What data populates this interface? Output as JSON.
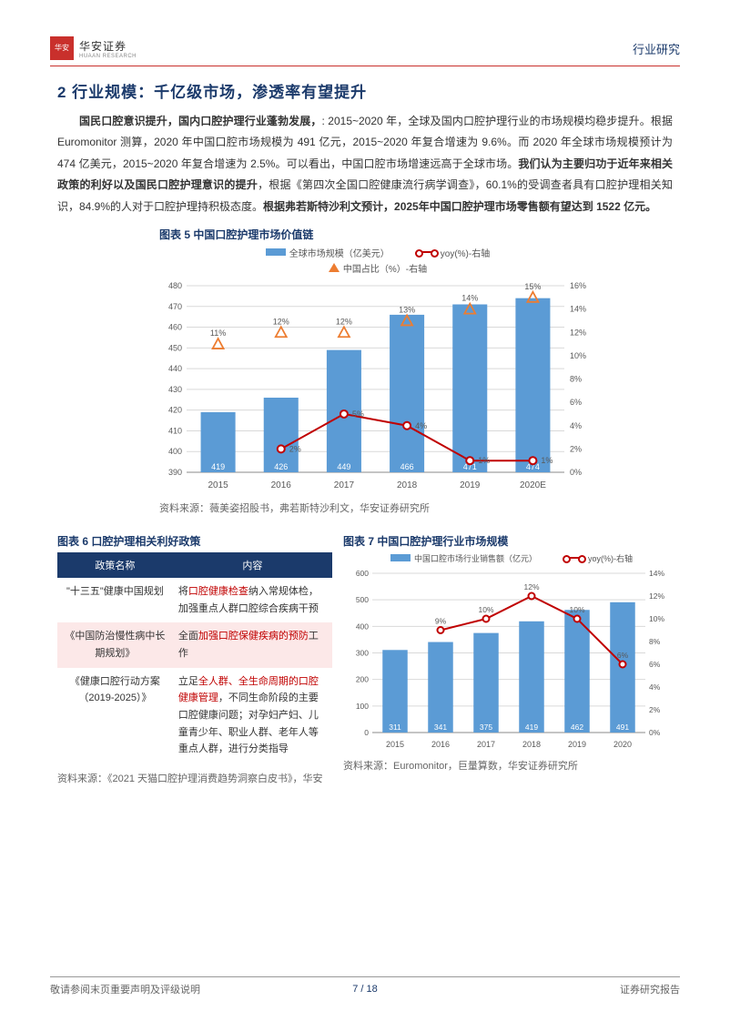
{
  "header": {
    "logo_cn": "华安证券",
    "logo_en": "HUAAN RESEARCH",
    "right": "行业研究"
  },
  "section": {
    "title": "2 行业规模：千亿级市场，渗透率有望提升"
  },
  "para": {
    "p1a": "国民口腔意识提升，国内口腔护理行业蓬勃发展，",
    "p1b": ": 2015~2020 年，全球及国内口腔护理行业的市场规模均稳步提升。根据 Euromonitor 测算，2020 年中国口腔市场规模为 491 亿元，2015~2020 年复合增速为 9.6%。而 2020 年全球市场规模预计为 474 亿美元，2015~2020 年复合增速为 2.5%。可以看出，中国口腔市场增速远高于全球市场。",
    "p1c": "我们认为主要归功于近年来相关政策的利好以及国民口腔护理意识的提升",
    "p1d": "，根据《第四次全国口腔健康流行病学调查》，60.1%的受调查者具有口腔护理相关知识，84.9%的人对于口腔护理持积极态度。",
    "p1e": "根据弗若斯特沙利文预计，2025年中国口腔护理市场零售额有望达到 1522 亿元。"
  },
  "fig5": {
    "title": "图表 5 中国口腔护理市场价值链",
    "legend_bar": "全球市场规模（亿美元）",
    "legend_line": "yoy(%)-右轴",
    "legend_tri": "中国占比（%）-右轴",
    "categories": [
      "2015",
      "2016",
      "2017",
      "2018",
      "2019",
      "2020E"
    ],
    "bar_values": [
      419,
      426,
      449,
      466,
      471,
      474
    ],
    "bar_labels": [
      "419",
      "426",
      "449",
      "466",
      "471",
      "474"
    ],
    "line_values": [
      null,
      2,
      5,
      4,
      1,
      1
    ],
    "line_labels": [
      "",
      "2%",
      "5%",
      "4%",
      "1%",
      "1%"
    ],
    "tri_values": [
      11,
      12,
      12,
      13,
      14,
      15
    ],
    "tri_labels": [
      "11%",
      "12%",
      "12%",
      "13%",
      "14%",
      "15%"
    ],
    "y1_ticks": [
      390,
      400,
      410,
      420,
      430,
      440,
      450,
      460,
      470,
      480
    ],
    "y2_ticks": [
      0,
      2,
      4,
      6,
      8,
      10,
      12,
      14,
      16
    ],
    "y2_tick_labels": [
      "0%",
      "2%",
      "4%",
      "6%",
      "8%",
      "10%",
      "12%",
      "14%",
      "16%"
    ],
    "y1_min": 390,
    "y1_max": 480,
    "y2_min": 0,
    "y2_max": 16,
    "bar_color": "#5b9bd5",
    "line_color": "#c00000",
    "tri_color": "#ed7d31",
    "grid_color": "#d9d9d9",
    "axis_color": "#888888",
    "text_color": "#595959",
    "source": "资料来源：薇美姿招股书，弗若斯特沙利文，华安证券研究所"
  },
  "fig6": {
    "title": "图表 6 口腔护理相关利好政策",
    "th1": "政策名称",
    "th2": "内容",
    "rows": [
      {
        "name_a": "\"十三五\"健康中国规划",
        "content_a": "将",
        "content_r1": "口腔健康检查",
        "content_b": "纳入常规体检，加强重点人群口腔综合疾病干预",
        "hl": false
      },
      {
        "name_a": "《中国防治慢性病中长期规划》",
        "content_a": "全面",
        "content_r1": "加强口腔保健疾病的预防",
        "content_b": "工作",
        "hl": true
      },
      {
        "name_a": "《健康口腔行动方案（2019-2025）》",
        "content_a": "立足",
        "content_r1": "全人群、全生命周期的口腔健康管理",
        "content_b": "，不同生命阶段的主要口腔健康问题；对孕妇产妇、儿童青少年、职业人群、老年人等重点人群，进行分类指导",
        "hl": false
      }
    ],
    "source": "资料来源：《2021 天猫口腔护理消费趋势洞察白皮书》，华安"
  },
  "fig7": {
    "title": "图表 7 中国口腔护理行业市场规模",
    "legend_bar": "中国口腔市场行业销售额（亿元）",
    "legend_line": "yoy(%)-右轴",
    "categories": [
      "2015",
      "2016",
      "2017",
      "2018",
      "2019",
      "2020"
    ],
    "bar_values": [
      311,
      341,
      375,
      419,
      462,
      491
    ],
    "bar_labels": [
      "311",
      "341",
      "375",
      "419",
      "462",
      "491"
    ],
    "line_values": [
      null,
      9,
      10,
      12,
      10,
      6
    ],
    "line_labels": [
      "",
      "9%",
      "10%",
      "12%",
      "10%",
      "6%"
    ],
    "y1_ticks": [
      0,
      100,
      200,
      300,
      400,
      500,
      600
    ],
    "y2_ticks": [
      0,
      2,
      4,
      6,
      8,
      10,
      12,
      14
    ],
    "y2_tick_labels": [
      "0%",
      "2%",
      "4%",
      "6%",
      "8%",
      "10%",
      "12%",
      "14%"
    ],
    "y1_min": 0,
    "y1_max": 600,
    "y2_min": 0,
    "y2_max": 14,
    "bar_color": "#5b9bd5",
    "line_color": "#c00000",
    "grid_color": "#d9d9d9",
    "axis_color": "#888888",
    "text_color": "#595959",
    "source": "资料来源：Euromonitor，巨量算数，华安证券研究所"
  },
  "footer": {
    "left": "敬请参阅末页重要声明及评级说明",
    "center": "7 / 18",
    "right": "证券研究报告"
  }
}
